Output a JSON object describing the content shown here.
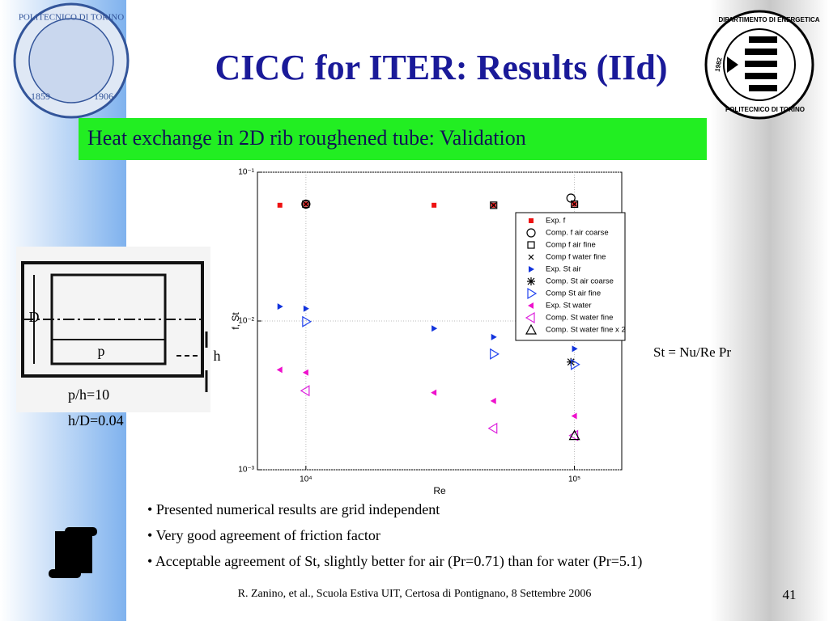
{
  "slide": {
    "title": "CICC for ITER: Results (IId)",
    "subtitle": "Heat exchange in 2D rib roughened tube: Validation",
    "left_logo": {
      "name": "POLITECNICO DI TORINO",
      "year_start": "1859",
      "year_end": "1906"
    },
    "right_logo": {
      "name": "DIPARTIMENTO DI ENERGETICA",
      "year": "1982",
      "school": "POLITECNICO DI TORINO"
    },
    "schematic": {
      "d_label": "D",
      "p_label": "p",
      "h_label": "h",
      "ratio1": "p/h=10",
      "ratio2": "h/D=0.04"
    },
    "note": "St = Nu/Re Pr",
    "bullets": [
      "Presented numerical results are grid independent",
      "Very good agreement of friction factor",
      "Acceptable agreement of St, slightly better for air (Pr=0.71) than for water (Pr=5.1)"
    ],
    "footer": "R. Zanino, et al., Scuola Estiva UIT, Certosa di Pontignano, 8 Settembre 2006",
    "page": "41"
  },
  "chart_data": {
    "type": "scatter",
    "x_label": "Re",
    "y_label": "f, St",
    "log_x": true,
    "log_y": true,
    "grid": true,
    "legend": "upper right",
    "xlim": [
      6600,
      150000
    ],
    "ylim": [
      0.001,
      0.1
    ],
    "xticks": [
      {
        "value": 10000,
        "label": "10⁴"
      },
      {
        "value": 100000,
        "label": "10⁵"
      }
    ],
    "yticks": [
      {
        "value": 0.001,
        "label": "10⁻³"
      },
      {
        "value": 0.01,
        "label": "10⁻²"
      },
      {
        "value": 0.1,
        "label": "10⁻¹"
      }
    ],
    "series": [
      {
        "name": "Exp. f",
        "color": "#ee1111",
        "marker": "square-filled",
        "x": [
          8000,
          10000,
          30000,
          50000,
          100000
        ],
        "values": [
          0.06,
          0.061,
          0.06,
          0.06,
          0.061
        ]
      },
      {
        "name": "Comp. f air coarse",
        "color": "#000000",
        "marker": "circle",
        "x": [
          10000,
          97000
        ],
        "values": [
          0.061,
          0.067
        ]
      },
      {
        "name": "Comp f air fine",
        "color": "#000000",
        "marker": "square",
        "x": [
          10000,
          50000,
          100000
        ],
        "values": [
          0.061,
          0.06,
          0.061
        ]
      },
      {
        "name": "Comp f water fine",
        "color": "#000000",
        "marker": "x",
        "x": [
          10000,
          50000,
          100000
        ],
        "values": [
          0.061,
          0.06,
          0.061
        ]
      },
      {
        "name": "Exp. St air",
        "color": "#1133dd",
        "marker": "triangle-right-filled",
        "x": [
          8000,
          10000,
          30000,
          50000,
          100000
        ],
        "values": [
          0.0125,
          0.0121,
          0.0089,
          0.0078,
          0.0065
        ]
      },
      {
        "name": "Comp. St air coarse",
        "color": "#000000",
        "marker": "star",
        "x": [
          97000
        ],
        "values": [
          0.0053
        ]
      },
      {
        "name": "Comp St air fine",
        "color": "#2244ee",
        "marker": "triangle-right",
        "x": [
          10000,
          50000,
          100000
        ],
        "values": [
          0.0099,
          0.006,
          0.0051
        ]
      },
      {
        "name": "Exp. St water",
        "color": "#ee11cc",
        "marker": "triangle-left-filled",
        "x": [
          8000,
          10000,
          30000,
          50000,
          100000
        ],
        "values": [
          0.0047,
          0.0045,
          0.0033,
          0.0029,
          0.0023
        ]
      },
      {
        "name": "Comp. St water fine",
        "color": "#dd22dd",
        "marker": "triangle-left",
        "x": [
          10000,
          50000,
          100000
        ],
        "values": [
          0.0034,
          0.0019,
          0.0017
        ]
      },
      {
        "name": "Comp. St water fine x 2",
        "color": "#000000",
        "marker": "triangle-up",
        "x": [
          100000
        ],
        "values": [
          0.0017
        ]
      }
    ]
  }
}
